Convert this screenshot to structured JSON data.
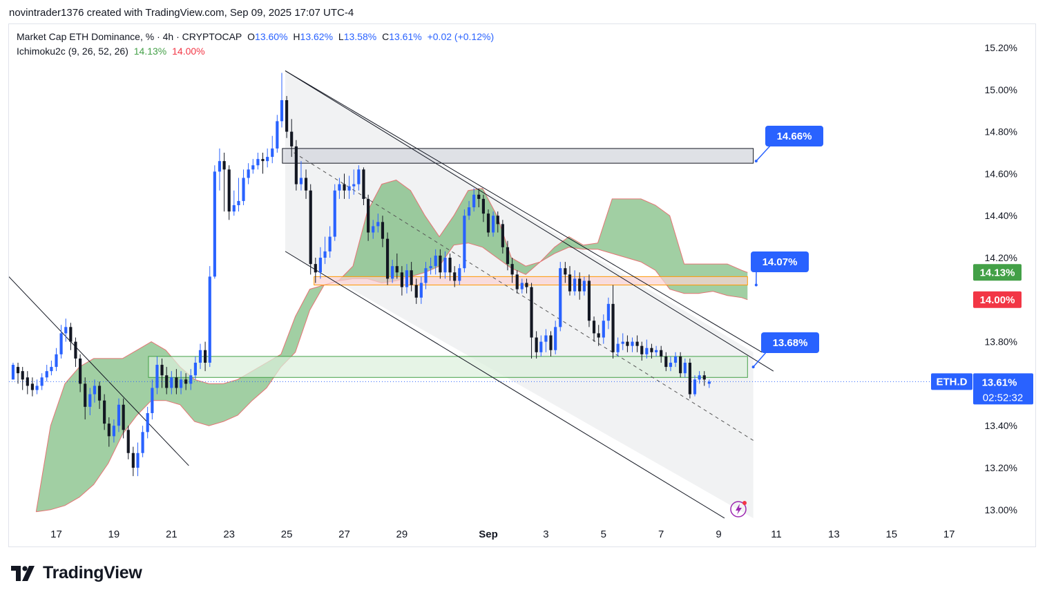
{
  "header": {
    "credit": "novintrader1376 created with TradingView.com, Sep 09, 2025 17:07 UTC-4"
  },
  "legend": {
    "symbol": "Market Cap ETH Dominance, % · 4h · CRYPTOCAP",
    "o_label": "O",
    "o_value": "13.60%",
    "h_label": "H",
    "h_value": "13.62%",
    "l_label": "L",
    "l_value": "13.58%",
    "c_label": "C",
    "c_value": "13.61%",
    "change": "+0.02 (+0.12%)",
    "indicator": "Ichimoku2c (9, 26, 52, 26)",
    "ind_v1": "14.13%",
    "ind_v2": "14.00%"
  },
  "brand": {
    "name": "TradingView"
  },
  "colors": {
    "up": "#2962ff",
    "down": "#131722",
    "cloud": "#43a047",
    "cloud_edge": "#e57373",
    "badge": "#2962ff"
  },
  "chart_data": {
    "type": "candlestick",
    "title": "Market Cap ETH Dominance, % · 4h · CRYPTOCAP",
    "y_unit": "%",
    "ylim": [
      12.96,
      15.28
    ],
    "y_ticks": [
      "15.20%",
      "15.00%",
      "14.80%",
      "14.60%",
      "14.40%",
      "14.20%",
      "13.80%",
      "13.40%",
      "13.20%",
      "13.00%"
    ],
    "y_tick_values": [
      15.2,
      15.0,
      14.8,
      14.6,
      14.4,
      14.2,
      13.8,
      13.4,
      13.2,
      13.0
    ],
    "x_ticks": [
      "17",
      "19",
      "21",
      "23",
      "25",
      "27",
      "29",
      "Sep",
      "3",
      "5",
      "7",
      "9",
      "11",
      "13",
      "15",
      "17"
    ],
    "x_tick_days": [
      0,
      2,
      4,
      6,
      8,
      10,
      12,
      15,
      17,
      19,
      21,
      23,
      25,
      27,
      29,
      31
    ],
    "x_range_days": [
      -1.65,
      31.9
    ],
    "last_day": 22.7,
    "price_tags": [
      {
        "text": "ETH.D",
        "kind": "symbol"
      },
      {
        "text": "13.61%",
        "kind": "price",
        "value": 13.61,
        "color": "#2962ff"
      },
      {
        "text": "02:52:32",
        "kind": "countdown",
        "color": "#2962ff"
      },
      {
        "text": "14.13%",
        "kind": "price",
        "value": 14.13,
        "color": "#43a047"
      },
      {
        "text": "14.00%",
        "kind": "price",
        "value": 14.0,
        "color": "#f23645"
      }
    ],
    "annotations": [
      {
        "text": "14.66%",
        "value": 14.66,
        "anchor_day": 24.3,
        "anchor_value": 14.66
      },
      {
        "text": "14.07%",
        "value": 14.07,
        "anchor_day": 24.3,
        "anchor_value": 14.07
      },
      {
        "text": "13.68%",
        "value": 13.68,
        "anchor_day": 24.2,
        "anchor_value": 13.68
      }
    ],
    "zones": [
      {
        "name": "resistance",
        "d1": 7.85,
        "d2": 24.2,
        "top": 14.72,
        "bottom": 14.65,
        "fill": "#d1d4dc",
        "stroke": "#131722"
      },
      {
        "name": "mid",
        "d1": 8.95,
        "d2": 24.0,
        "top": 14.11,
        "bottom": 14.07,
        "fill": "#fbd3d3",
        "stroke": "#ff9800"
      },
      {
        "name": "support",
        "d1": 3.2,
        "d2": 24.0,
        "top": 13.73,
        "bottom": 13.63,
        "fill": "#dcf0dc",
        "stroke": "#43a047"
      }
    ],
    "lines": [
      {
        "name": "channel-top-a",
        "from": [
          7.95,
          15.09
        ],
        "to": [
          24.5,
          13.75
        ]
      },
      {
        "name": "channel-top-b",
        "from": [
          7.95,
          15.09
        ],
        "to": [
          24.9,
          13.66
        ]
      },
      {
        "name": "channel-bottom",
        "from": [
          7.95,
          14.23
        ],
        "to": [
          23.2,
          12.96
        ]
      },
      {
        "name": "old-trend",
        "from": [
          -1.65,
          14.11
        ],
        "to": [
          4.6,
          13.21
        ]
      }
    ],
    "dashed_midline": {
      "from": [
        8.25,
        14.7
      ],
      "to": [
        24.2,
        13.33
      ]
    },
    "channel_shade": {
      "d1": 7.95,
      "d2": 24.2,
      "top_from": 15.09,
      "top_to": 13.75,
      "bot_from": 14.23,
      "bot_to": 12.96
    },
    "cloud": {
      "days": [
        -0.7,
        -0.2,
        0.3,
        0.8,
        1.3,
        1.8,
        2.3,
        2.8,
        3.3,
        3.8,
        4.3,
        4.8,
        5.3,
        5.8,
        6.3,
        6.8,
        7.3,
        7.8,
        8.3,
        8.8,
        9.3,
        9.8,
        10.3,
        10.8,
        11.3,
        11.8,
        12.3,
        12.8,
        13.3,
        13.8,
        14.3,
        14.8,
        15.3,
        15.8,
        16.3,
        16.8,
        17.3,
        17.8,
        18.3,
        18.8,
        19.3,
        19.8,
        20.3,
        20.8,
        21.3,
        21.8,
        22.3,
        22.8,
        23.3,
        23.8,
        24.0
      ],
      "span_a": [
        12.99,
        13.4,
        13.6,
        13.68,
        13.72,
        13.72,
        13.72,
        13.76,
        13.8,
        13.76,
        13.68,
        13.62,
        13.6,
        13.6,
        13.62,
        13.66,
        13.7,
        13.74,
        13.92,
        14.05,
        14.07,
        14.09,
        14.16,
        14.42,
        14.55,
        14.57,
        14.52,
        14.4,
        14.3,
        14.4,
        14.52,
        14.53,
        14.4,
        14.2,
        14.16,
        14.18,
        14.25,
        14.3,
        14.26,
        14.27,
        14.48,
        14.48,
        14.48,
        14.45,
        14.4,
        14.17,
        14.17,
        14.17,
        14.17,
        14.14,
        14.13
      ],
      "span_b": [
        12.99,
        13.0,
        13.02,
        13.06,
        13.12,
        13.22,
        13.36,
        13.45,
        13.52,
        13.52,
        13.5,
        13.42,
        13.4,
        13.42,
        13.45,
        13.52,
        13.58,
        13.68,
        13.75,
        13.95,
        14.07,
        14.09,
        14.1,
        14.1,
        14.08,
        14.09,
        14.11,
        14.13,
        14.16,
        14.26,
        14.27,
        14.25,
        14.2,
        14.15,
        14.12,
        14.18,
        14.22,
        14.25,
        14.24,
        14.24,
        14.22,
        14.2,
        14.18,
        14.14,
        14.05,
        14.03,
        14.03,
        14.04,
        14.02,
        14.01,
        14.0
      ]
    },
    "candles": [
      [
        -1.5,
        13.62,
        13.69,
        13.62,
        13.7
      ],
      [
        -1.33,
        13.68,
        13.65,
        13.6,
        13.7
      ],
      [
        -1.17,
        13.66,
        13.62,
        13.57,
        13.68
      ],
      [
        -1.0,
        13.63,
        13.59,
        13.55,
        13.66
      ],
      [
        -0.83,
        13.6,
        13.57,
        13.54,
        13.63
      ],
      [
        -0.67,
        13.57,
        13.59,
        13.55,
        13.62
      ],
      [
        -0.5,
        13.59,
        13.63,
        13.57,
        13.65
      ],
      [
        -0.33,
        13.63,
        13.66,
        13.61,
        13.69
      ],
      [
        -0.17,
        13.66,
        13.68,
        13.64,
        13.71
      ],
      [
        0.0,
        13.68,
        13.74,
        13.66,
        13.77
      ],
      [
        0.17,
        13.74,
        13.84,
        13.72,
        13.88
      ],
      [
        0.33,
        13.84,
        13.87,
        13.8,
        13.91
      ],
      [
        0.5,
        13.87,
        13.8,
        13.76,
        13.89
      ],
      [
        0.67,
        13.8,
        13.72,
        13.68,
        13.82
      ],
      [
        0.83,
        13.72,
        13.6,
        13.56,
        13.74
      ],
      [
        1.0,
        13.6,
        13.49,
        13.43,
        13.63
      ],
      [
        1.17,
        13.49,
        13.55,
        13.45,
        13.58
      ],
      [
        1.33,
        13.55,
        13.59,
        13.51,
        13.62
      ],
      [
        1.5,
        13.59,
        13.52,
        13.48,
        13.61
      ],
      [
        1.67,
        13.52,
        13.41,
        13.38,
        13.55
      ],
      [
        1.83,
        13.41,
        13.35,
        13.3,
        13.44
      ],
      [
        2.0,
        13.35,
        13.4,
        13.32,
        13.43
      ],
      [
        2.17,
        13.4,
        13.5,
        13.37,
        13.53
      ],
      [
        2.33,
        13.5,
        13.38,
        13.34,
        13.53
      ],
      [
        2.5,
        13.38,
        13.27,
        13.24,
        13.4
      ],
      [
        2.67,
        13.27,
        13.2,
        13.16,
        13.3
      ],
      [
        2.83,
        13.2,
        13.27,
        13.16,
        13.32
      ],
      [
        3.0,
        13.27,
        13.37,
        13.25,
        13.4
      ],
      [
        3.17,
        13.37,
        13.46,
        13.34,
        13.49
      ],
      [
        3.33,
        13.46,
        13.58,
        13.43,
        13.62
      ],
      [
        3.5,
        13.58,
        13.69,
        13.55,
        13.73
      ],
      [
        3.67,
        13.69,
        13.64,
        13.58,
        13.72
      ],
      [
        3.83,
        13.64,
        13.58,
        13.55,
        13.68
      ],
      [
        4.0,
        13.58,
        13.63,
        13.55,
        13.66
      ],
      [
        4.17,
        13.63,
        13.58,
        13.55,
        13.67
      ],
      [
        4.33,
        13.58,
        13.62,
        13.55,
        13.66
      ],
      [
        4.5,
        13.62,
        13.6,
        13.57,
        13.65
      ],
      [
        4.67,
        13.6,
        13.64,
        13.57,
        13.67
      ],
      [
        4.83,
        13.64,
        13.7,
        13.62,
        13.73
      ],
      [
        5.0,
        13.7,
        13.76,
        13.67,
        13.79
      ],
      [
        5.17,
        13.76,
        13.7,
        13.66,
        13.8
      ],
      [
        5.33,
        13.7,
        14.11,
        13.68,
        14.16
      ],
      [
        5.5,
        14.11,
        14.61,
        14.1,
        14.64
      ],
      [
        5.67,
        14.61,
        14.66,
        14.52,
        14.72
      ],
      [
        5.83,
        14.66,
        14.62,
        14.42,
        14.7
      ],
      [
        6.0,
        14.62,
        14.42,
        14.38,
        14.64
      ],
      [
        6.17,
        14.42,
        14.45,
        14.4,
        14.52
      ],
      [
        6.33,
        14.45,
        14.47,
        14.42,
        14.58
      ],
      [
        6.5,
        14.47,
        14.58,
        14.45,
        14.62
      ],
      [
        6.67,
        14.58,
        14.62,
        14.55,
        14.65
      ],
      [
        6.83,
        14.62,
        14.64,
        14.6,
        14.67
      ],
      [
        7.0,
        14.64,
        14.67,
        14.62,
        14.7
      ],
      [
        7.17,
        14.67,
        14.66,
        14.6,
        14.7
      ],
      [
        7.33,
        14.66,
        14.68,
        14.63,
        14.72
      ],
      [
        7.5,
        14.68,
        14.72,
        14.65,
        14.78
      ],
      [
        7.67,
        14.72,
        14.85,
        14.7,
        14.88
      ],
      [
        7.83,
        14.85,
        14.95,
        14.82,
        15.08
      ],
      [
        8.0,
        14.95,
        14.8,
        14.77,
        14.97
      ],
      [
        8.17,
        14.8,
        14.73,
        14.68,
        14.86
      ],
      [
        8.33,
        14.73,
        14.55,
        14.52,
        14.76
      ],
      [
        8.5,
        14.55,
        14.58,
        14.52,
        14.66
      ],
      [
        8.67,
        14.58,
        14.52,
        14.48,
        14.62
      ],
      [
        8.83,
        14.52,
        14.17,
        14.12,
        14.55
      ],
      [
        9.0,
        14.17,
        14.13,
        14.08,
        14.2
      ],
      [
        9.17,
        14.13,
        14.2,
        14.1,
        14.25
      ],
      [
        9.33,
        14.2,
        14.23,
        14.17,
        14.3
      ],
      [
        9.5,
        14.23,
        14.3,
        14.2,
        14.35
      ],
      [
        9.67,
        14.3,
        14.52,
        14.28,
        14.55
      ],
      [
        9.83,
        14.52,
        14.55,
        14.48,
        14.58
      ],
      [
        10.0,
        14.55,
        14.52,
        14.48,
        14.6
      ],
      [
        10.17,
        14.52,
        14.54,
        14.48,
        14.59
      ],
      [
        10.33,
        14.54,
        14.55,
        14.5,
        14.62
      ],
      [
        10.5,
        14.55,
        14.62,
        14.52,
        14.64
      ],
      [
        10.67,
        14.62,
        14.48,
        14.45,
        14.63
      ],
      [
        10.83,
        14.48,
        14.32,
        14.28,
        14.5
      ],
      [
        11.0,
        14.32,
        14.35,
        14.29,
        14.38
      ],
      [
        11.17,
        14.35,
        14.37,
        14.32,
        14.41
      ],
      [
        11.33,
        14.37,
        14.29,
        14.25,
        14.4
      ],
      [
        11.5,
        14.29,
        14.1,
        14.07,
        14.32
      ],
      [
        11.67,
        14.1,
        14.16,
        14.08,
        14.19
      ],
      [
        11.83,
        14.16,
        14.13,
        14.1,
        14.22
      ],
      [
        12.0,
        14.13,
        14.06,
        14.02,
        14.16
      ],
      [
        12.17,
        14.06,
        14.14,
        14.03,
        14.17
      ],
      [
        12.33,
        14.14,
        14.07,
        14.04,
        14.18
      ],
      [
        12.5,
        14.07,
        14.01,
        13.98,
        14.1
      ],
      [
        12.67,
        14.01,
        14.08,
        13.98,
        14.11
      ],
      [
        12.83,
        14.08,
        14.15,
        14.05,
        14.18
      ],
      [
        13.0,
        14.15,
        14.16,
        14.12,
        14.2
      ],
      [
        13.17,
        14.16,
        14.21,
        14.12,
        14.24
      ],
      [
        13.33,
        14.21,
        14.13,
        14.1,
        14.24
      ],
      [
        13.5,
        14.13,
        14.2,
        14.1,
        14.23
      ],
      [
        13.67,
        14.2,
        14.13,
        14.09,
        14.22
      ],
      [
        13.83,
        14.13,
        14.09,
        14.06,
        14.16
      ],
      [
        14.0,
        14.09,
        14.15,
        14.07,
        14.17
      ],
      [
        14.17,
        14.15,
        14.4,
        14.13,
        14.43
      ],
      [
        14.33,
        14.4,
        14.44,
        14.38,
        14.47
      ],
      [
        14.5,
        14.44,
        14.5,
        14.42,
        14.53
      ],
      [
        14.67,
        14.5,
        14.48,
        14.44,
        14.53
      ],
      [
        14.83,
        14.48,
        14.41,
        14.37,
        14.5
      ],
      [
        15.0,
        14.41,
        14.32,
        14.3,
        14.43
      ],
      [
        15.17,
        14.32,
        14.4,
        14.3,
        14.42
      ],
      [
        15.33,
        14.4,
        14.36,
        14.32,
        14.42
      ],
      [
        15.5,
        14.36,
        14.25,
        14.22,
        14.38
      ],
      [
        15.67,
        14.25,
        14.17,
        14.14,
        14.28
      ],
      [
        15.83,
        14.17,
        14.12,
        14.08,
        14.2
      ],
      [
        16.0,
        14.12,
        14.05,
        14.03,
        14.14
      ],
      [
        16.17,
        14.05,
        14.08,
        14.03,
        14.1
      ],
      [
        16.33,
        14.08,
        14.06,
        14.03,
        14.1
      ],
      [
        16.5,
        14.06,
        13.82,
        13.72,
        14.08
      ],
      [
        16.67,
        13.82,
        13.75,
        13.72,
        13.85
      ],
      [
        16.83,
        13.75,
        13.8,
        13.73,
        13.83
      ],
      [
        17.0,
        13.8,
        13.83,
        13.75,
        13.86
      ],
      [
        17.17,
        13.83,
        13.76,
        13.73,
        13.85
      ],
      [
        17.33,
        13.76,
        13.87,
        13.74,
        13.9
      ],
      [
        17.5,
        13.87,
        14.15,
        13.85,
        14.18
      ],
      [
        17.67,
        14.15,
        14.12,
        14.08,
        14.18
      ],
      [
        17.83,
        14.12,
        14.04,
        14.02,
        14.16
      ],
      [
        18.0,
        14.04,
        14.1,
        14.02,
        14.14
      ],
      [
        18.17,
        14.1,
        14.04,
        14.0,
        14.13
      ],
      [
        18.33,
        14.04,
        14.09,
        14.02,
        14.11
      ],
      [
        18.5,
        14.09,
        13.9,
        13.87,
        14.12
      ],
      [
        18.67,
        13.9,
        13.84,
        13.8,
        13.92
      ],
      [
        18.83,
        13.84,
        13.82,
        13.78,
        13.88
      ],
      [
        19.0,
        13.82,
        13.9,
        13.79,
        13.93
      ],
      [
        19.17,
        13.9,
        13.98,
        13.86,
        14.01
      ],
      [
        19.33,
        13.98,
        13.75,
        13.72,
        14.07
      ],
      [
        19.5,
        13.75,
        13.79,
        13.73,
        13.82
      ],
      [
        19.67,
        13.79,
        13.8,
        13.76,
        13.84
      ],
      [
        19.83,
        13.8,
        13.78,
        13.75,
        13.83
      ],
      [
        20.0,
        13.78,
        13.8,
        13.75,
        13.82
      ],
      [
        20.17,
        13.8,
        13.78,
        13.75,
        13.83
      ],
      [
        20.33,
        13.78,
        13.74,
        13.71,
        13.8
      ],
      [
        20.5,
        13.74,
        13.77,
        13.72,
        13.81
      ],
      [
        20.67,
        13.77,
        13.75,
        13.72,
        13.79
      ],
      [
        20.83,
        13.75,
        13.76,
        13.73,
        13.78
      ],
      [
        21.0,
        13.76,
        13.73,
        13.7,
        13.78
      ],
      [
        21.17,
        13.73,
        13.68,
        13.66,
        13.75
      ],
      [
        21.33,
        13.68,
        13.7,
        13.66,
        13.73
      ],
      [
        21.5,
        13.7,
        13.73,
        13.68,
        13.75
      ],
      [
        21.67,
        13.73,
        13.65,
        13.63,
        13.75
      ],
      [
        21.83,
        13.65,
        13.7,
        13.63,
        13.72
      ],
      [
        22.0,
        13.7,
        13.55,
        13.53,
        13.72
      ],
      [
        22.17,
        13.55,
        13.62,
        13.54,
        13.64
      ],
      [
        22.33,
        13.62,
        13.64,
        13.6,
        13.66
      ],
      [
        22.5,
        13.64,
        13.62,
        13.59,
        13.66
      ],
      [
        22.67,
        13.6,
        13.61,
        13.58,
        13.62
      ]
    ]
  }
}
